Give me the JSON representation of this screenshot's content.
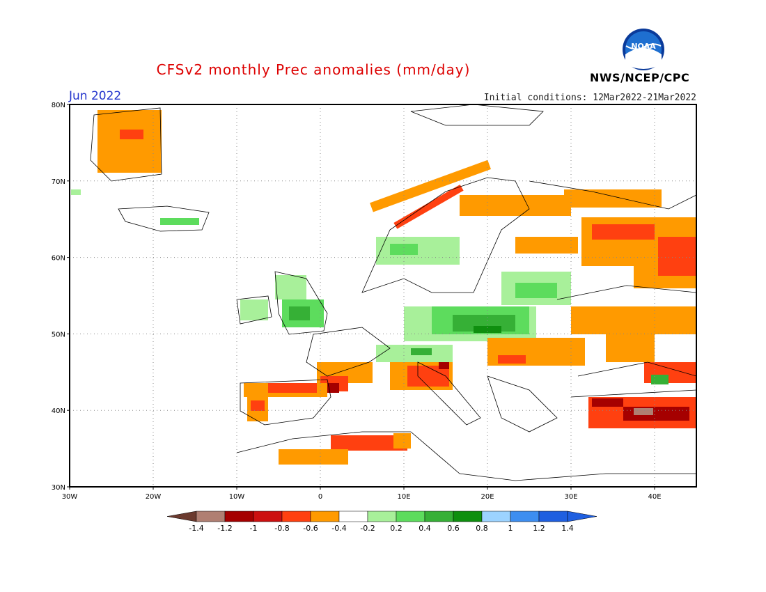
{
  "header": {
    "title": "CFSv2 monthly Prec anomalies (mm/day)",
    "month": "Jun 2022",
    "initial_conditions": "Initial conditions: 12Mar2022-21Mar2022",
    "agency": "NWS/NCEP/CPC",
    "logo_text": "NOAA"
  },
  "map": {
    "region": "Europe",
    "lon_range": [
      -30,
      45
    ],
    "lat_range": [
      30,
      80
    ],
    "x_ticks": [
      "30W",
      "20W",
      "10W",
      "0",
      "10E",
      "20E",
      "30E",
      "40E"
    ],
    "y_ticks": [
      "80N",
      "70N",
      "60N",
      "50N",
      "40N",
      "30N"
    ],
    "gridlines": "dotted",
    "land_background": "#ffffff"
  },
  "colorbar": {
    "labels": [
      "-1.4",
      "-1.2",
      "-1",
      "-0.8",
      "-0.6",
      "-0.4",
      "-0.2",
      "0.2",
      "0.4",
      "0.6",
      "0.8",
      "1",
      "1.2",
      "1.4"
    ],
    "colors": [
      "#7b4a3e",
      "#b07f72",
      "#a50000",
      "#cc1010",
      "#ff4010",
      "#ff9a00",
      "#ffffff",
      "#a8f09a",
      "#5ddc5d",
      "#36b036",
      "#0f8f0f",
      "#9cd3ff",
      "#3d8ef0",
      "#1f5fe0"
    ],
    "lower_arrow_color": "#6b3a2e",
    "upper_arrow_color": "#1f5fe0"
  }
}
